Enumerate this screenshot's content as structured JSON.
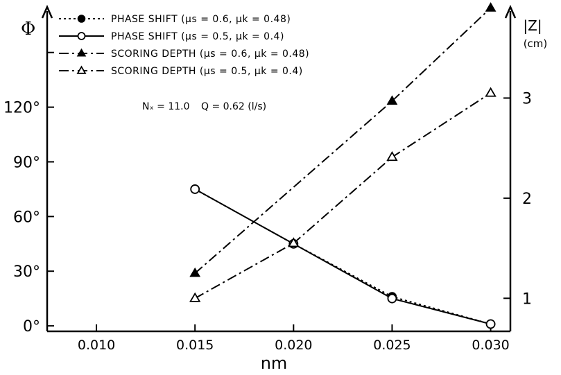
{
  "chart_data": {
    "type": "line",
    "xlabel": "nm",
    "x_ticks": [
      "0.010",
      "0.015",
      "0.020",
      "0.025",
      "0.030"
    ],
    "xlim": [
      0.0075,
      0.031
    ],
    "y_left": {
      "label": "Φ",
      "ticks": [
        "0°",
        "30°",
        "60°",
        "90°",
        "120°"
      ],
      "tick_values": [
        0,
        30,
        60,
        90,
        120
      ],
      "ylim": [
        -3,
        175
      ]
    },
    "y_right": {
      "label": "|Z|",
      "unit": "(cm)",
      "ticks": [
        "1",
        "2",
        "3"
      ],
      "tick_values": [
        1,
        2,
        3
      ],
      "ylim": [
        0.67,
        3.91
      ]
    },
    "legend_position": "top-left",
    "annotations": [
      "Nₓ = 11.0",
      "Q = 0.62 (l/s)"
    ],
    "series": [
      {
        "name": "PHASE SHIFT (μs = 0.6, μk = 0.48)",
        "axis": "left",
        "marker": "filled-circle",
        "line": "dotted",
        "x": [
          0.015,
          0.02,
          0.025,
          0.03
        ],
        "y": [
          75,
          45,
          16,
          1
        ]
      },
      {
        "name": "PHASE SHIFT (μs = 0.5, μk = 0.4)",
        "axis": "left",
        "marker": "open-circle",
        "line": "solid",
        "x": [
          0.015,
          0.02,
          0.025,
          0.03
        ],
        "y": [
          75,
          45,
          15,
          1
        ]
      },
      {
        "name": "SCORING DEPTH (μs = 0.6, μk = 0.48)",
        "axis": "right",
        "marker": "filled-triangle",
        "line": "dash-dot",
        "x": [
          0.015,
          0.025,
          0.03
        ],
        "y": [
          1.25,
          2.97,
          3.9
        ]
      },
      {
        "name": "SCORING DEPTH (μs = 0.5, μk = 0.4)",
        "axis": "right",
        "marker": "open-triangle",
        "line": "dash-dot",
        "x": [
          0.015,
          0.02,
          0.025,
          0.03
        ],
        "y": [
          1.0,
          1.55,
          2.41,
          3.05
        ]
      }
    ]
  }
}
